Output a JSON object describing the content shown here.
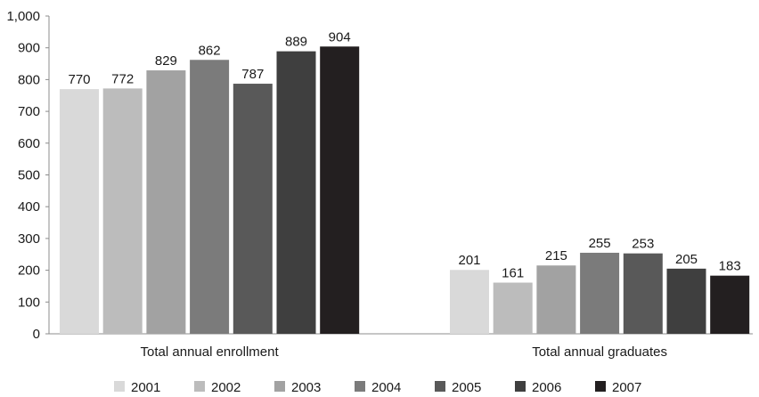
{
  "chart_data": {
    "type": "bar",
    "categories": [
      "Total annual enrollment",
      "Total annual graduates"
    ],
    "series": [
      {
        "name": "2001",
        "color": "#d9d9d9",
        "values": [
          770,
          201
        ]
      },
      {
        "name": "2002",
        "color": "#bcbcbc",
        "values": [
          772,
          161
        ]
      },
      {
        "name": "2003",
        "color": "#a2a2a2",
        "values": [
          829,
          215
        ]
      },
      {
        "name": "2004",
        "color": "#7b7b7b",
        "values": [
          862,
          255
        ]
      },
      {
        "name": "2005",
        "color": "#595959",
        "values": [
          787,
          253
        ]
      },
      {
        "name": "2006",
        "color": "#3f3f3f",
        "values": [
          889,
          205
        ]
      },
      {
        "name": "2007",
        "color": "#231f20",
        "values": [
          904,
          183
        ]
      }
    ],
    "ylim": [
      0,
      1000
    ],
    "yticks": [
      "0",
      "100",
      "200",
      "300",
      "400",
      "500",
      "600",
      "700",
      "800",
      "900",
      "1,000"
    ],
    "grid": false,
    "legend_position": "bottom"
  }
}
